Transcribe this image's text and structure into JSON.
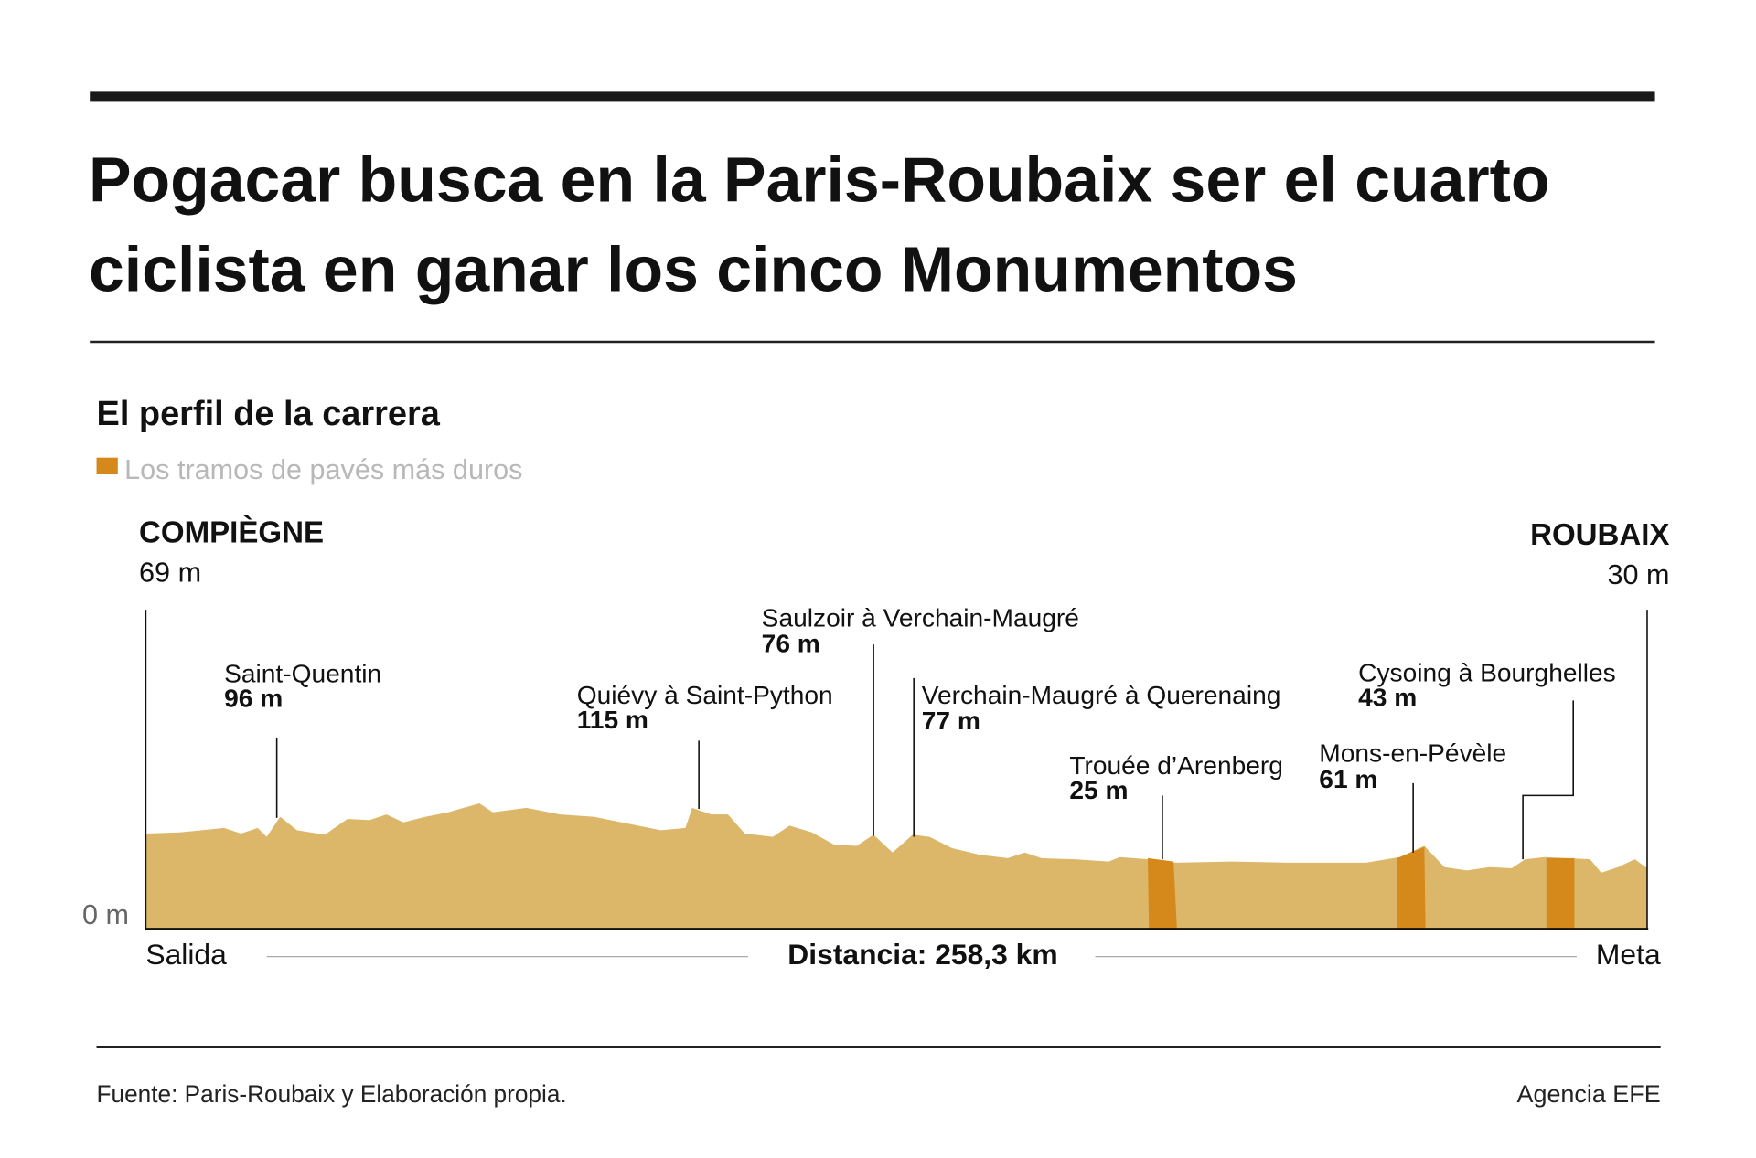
{
  "header": {
    "title": [
      "Pogacar busca en la Paris-Roubaix ser el cuarto",
      "ciclista en ganar los cinco Monumentos"
    ]
  },
  "section": {
    "title": "El perfil de la carrera",
    "legend": "Los tramos de pavés más duros"
  },
  "profile": {
    "start": {
      "name": "COMPIÈGNE",
      "altitude": "69 m"
    },
    "end": {
      "name": "ROUBAIX",
      "altitude": "30 m"
    },
    "zero_label": "0 m",
    "points": [
      {
        "name": "Saint-Quentin",
        "altitude": "96 m"
      },
      {
        "name": "Quiévy à Saint-Python",
        "altitude": "115 m"
      },
      {
        "name": "Saulzoir à Verchain-Maugré",
        "altitude": "76 m"
      },
      {
        "name": "Verchain-Maugré à Querenaing",
        "altitude": "77 m"
      },
      {
        "name": "Trouée d’Arenberg",
        "altitude": "25 m"
      },
      {
        "name": "Mons-en-Pévèle",
        "altitude": "61 m"
      },
      {
        "name": "Cysoing à Bourghelles",
        "altitude": "43 m"
      }
    ],
    "start_label": "Salida",
    "end_label": "Meta",
    "distance": "Distancia: 258,3 km"
  },
  "footer": {
    "source": "Fuente: Paris-Roubaix y Elaboración propia.",
    "credit": "Agencia EFE"
  }
}
